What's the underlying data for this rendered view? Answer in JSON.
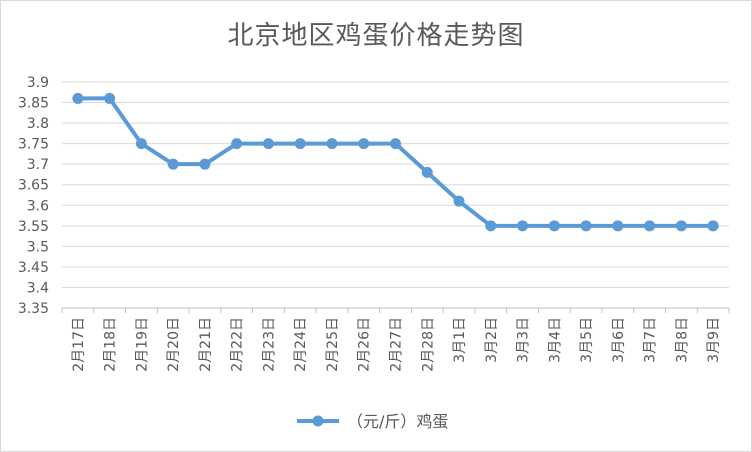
{
  "chart_data": {
    "type": "line",
    "title": "北京地区鸡蛋价格走势图",
    "categories": [
      "2月17日",
      "2月18日",
      "2月19日",
      "2月20日",
      "2月21日",
      "2月22日",
      "2月23日",
      "2月24日",
      "2月25日",
      "2月26日",
      "2月27日",
      "2月28日",
      "3月1日",
      "3月2日",
      "3月3日",
      "3月4日",
      "3月5日",
      "3月6日",
      "3月7日",
      "3月8日",
      "3月9日"
    ],
    "series": [
      {
        "name": "（元/斤）鸡蛋",
        "values": [
          3.86,
          3.86,
          3.75,
          3.7,
          3.7,
          3.75,
          3.75,
          3.75,
          3.75,
          3.75,
          3.75,
          3.68,
          3.61,
          3.55,
          3.55,
          3.55,
          3.55,
          3.55,
          3.55,
          3.55,
          3.55
        ],
        "color": "#5b9bd5"
      }
    ],
    "ylim": [
      3.35,
      3.9
    ],
    "yticks": [
      "3.35",
      "3.4",
      "3.45",
      "3.5",
      "3.55",
      "3.6",
      "3.65",
      "3.7",
      "3.75",
      "3.8",
      "3.85",
      "3.9"
    ],
    "xlabel": "",
    "ylabel": "",
    "grid": true,
    "legend": "bottom",
    "colors": {
      "grid": "#d9d9d9",
      "text": "#595959"
    }
  }
}
